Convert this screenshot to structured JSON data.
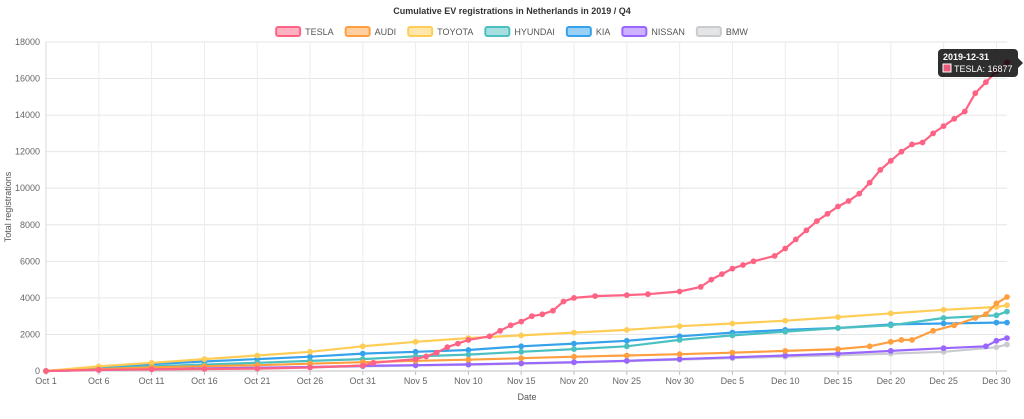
{
  "chart_data": {
    "type": "line",
    "title": "Cumulative EV registrations in Netherlands in 2019 / Q4",
    "xlabel": "Date",
    "ylabel": "Total registrations",
    "ylim": [
      0,
      18000
    ],
    "yticks": [
      0,
      2000,
      4000,
      6000,
      8000,
      10000,
      12000,
      14000,
      16000,
      18000
    ],
    "xticks": [
      "Oct 1",
      "Oct 6",
      "Oct 11",
      "Oct 16",
      "Oct 21",
      "Oct 26",
      "Oct 31",
      "Nov 5",
      "Nov 10",
      "Nov 15",
      "Nov 20",
      "Nov 25",
      "Nov 30",
      "Dec 5",
      "Dec 10",
      "Dec 15",
      "Dec 20",
      "Dec 25",
      "Dec 30"
    ],
    "x_domain": [
      "2019-10-01",
      "2019-12-31"
    ],
    "grid": true,
    "legend_position": "top",
    "tooltip": {
      "date": "2019-12-31",
      "series": "TESLA",
      "value": 16877,
      "label": "TESLA: 16877"
    },
    "series": [
      {
        "name": "TESLA",
        "color": "#ff6384",
        "points": [
          [
            "2019-10-01",
            0
          ],
          [
            "2019-10-06",
            60
          ],
          [
            "2019-10-11",
            90
          ],
          [
            "2019-10-16",
            110
          ],
          [
            "2019-10-21",
            130
          ],
          [
            "2019-10-26",
            190
          ],
          [
            "2019-10-31",
            300
          ],
          [
            "2019-11-01",
            450
          ],
          [
            "2019-11-05",
            650
          ],
          [
            "2019-11-06",
            800
          ],
          [
            "2019-11-07",
            1000
          ],
          [
            "2019-11-08",
            1300
          ],
          [
            "2019-11-09",
            1500
          ],
          [
            "2019-11-10",
            1700
          ],
          [
            "2019-11-12",
            1900
          ],
          [
            "2019-11-13",
            2200
          ],
          [
            "2019-11-14",
            2500
          ],
          [
            "2019-11-15",
            2700
          ],
          [
            "2019-11-16",
            3000
          ],
          [
            "2019-11-17",
            3100
          ],
          [
            "2019-11-18",
            3300
          ],
          [
            "2019-11-19",
            3800
          ],
          [
            "2019-11-20",
            4000
          ],
          [
            "2019-11-22",
            4100
          ],
          [
            "2019-11-25",
            4150
          ],
          [
            "2019-11-27",
            4200
          ],
          [
            "2019-11-30",
            4350
          ],
          [
            "2019-12-02",
            4600
          ],
          [
            "2019-12-03",
            5000
          ],
          [
            "2019-12-04",
            5300
          ],
          [
            "2019-12-05",
            5600
          ],
          [
            "2019-12-06",
            5800
          ],
          [
            "2019-12-07",
            6000
          ],
          [
            "2019-12-09",
            6300
          ],
          [
            "2019-12-10",
            6700
          ],
          [
            "2019-12-11",
            7200
          ],
          [
            "2019-12-12",
            7700
          ],
          [
            "2019-12-13",
            8200
          ],
          [
            "2019-12-14",
            8600
          ],
          [
            "2019-12-15",
            9000
          ],
          [
            "2019-12-16",
            9300
          ],
          [
            "2019-12-17",
            9700
          ],
          [
            "2019-12-18",
            10300
          ],
          [
            "2019-12-19",
            11000
          ],
          [
            "2019-12-20",
            11500
          ],
          [
            "2019-12-21",
            12000
          ],
          [
            "2019-12-22",
            12400
          ],
          [
            "2019-12-23",
            12500
          ],
          [
            "2019-12-24",
            13000
          ],
          [
            "2019-12-25",
            13400
          ],
          [
            "2019-12-26",
            13800
          ],
          [
            "2019-12-27",
            14200
          ],
          [
            "2019-12-28",
            15200
          ],
          [
            "2019-12-29",
            15800
          ],
          [
            "2019-12-30",
            16400
          ],
          [
            "2019-12-31",
            16877
          ]
        ]
      },
      {
        "name": "AUDI",
        "color": "#ff9f40",
        "points": [
          [
            "2019-10-01",
            0
          ],
          [
            "2019-10-06",
            100
          ],
          [
            "2019-10-11",
            200
          ],
          [
            "2019-10-16",
            260
          ],
          [
            "2019-10-21",
            320
          ],
          [
            "2019-10-26",
            400
          ],
          [
            "2019-10-31",
            480
          ],
          [
            "2019-11-05",
            560
          ],
          [
            "2019-11-10",
            620
          ],
          [
            "2019-11-15",
            700
          ],
          [
            "2019-11-20",
            780
          ],
          [
            "2019-11-25",
            850
          ],
          [
            "2019-11-30",
            920
          ],
          [
            "2019-12-05",
            1000
          ],
          [
            "2019-12-10",
            1100
          ],
          [
            "2019-12-15",
            1200
          ],
          [
            "2019-12-18",
            1350
          ],
          [
            "2019-12-20",
            1600
          ],
          [
            "2019-12-21",
            1700
          ],
          [
            "2019-12-22",
            1700
          ],
          [
            "2019-12-24",
            2200
          ],
          [
            "2019-12-26",
            2500
          ],
          [
            "2019-12-28",
            2900
          ],
          [
            "2019-12-29",
            3100
          ],
          [
            "2019-12-30",
            3700
          ],
          [
            "2019-12-31",
            4050
          ]
        ]
      },
      {
        "name": "TOYOTA",
        "color": "#ffcd56",
        "points": [
          [
            "2019-10-01",
            0
          ],
          [
            "2019-10-06",
            250
          ],
          [
            "2019-10-11",
            450
          ],
          [
            "2019-10-16",
            650
          ],
          [
            "2019-10-21",
            850
          ],
          [
            "2019-10-26",
            1050
          ],
          [
            "2019-10-31",
            1350
          ],
          [
            "2019-11-05",
            1600
          ],
          [
            "2019-11-10",
            1800
          ],
          [
            "2019-11-15",
            1950
          ],
          [
            "2019-11-20",
            2100
          ],
          [
            "2019-11-25",
            2250
          ],
          [
            "2019-11-30",
            2450
          ],
          [
            "2019-12-05",
            2600
          ],
          [
            "2019-12-10",
            2750
          ],
          [
            "2019-12-15",
            2950
          ],
          [
            "2019-12-20",
            3150
          ],
          [
            "2019-12-25",
            3350
          ],
          [
            "2019-12-30",
            3500
          ],
          [
            "2019-12-31",
            3600
          ]
        ]
      },
      {
        "name": "HYUNDAI",
        "color": "#4bc0c0",
        "points": [
          [
            "2019-10-01",
            0
          ],
          [
            "2019-10-06",
            120
          ],
          [
            "2019-10-11",
            250
          ],
          [
            "2019-10-16",
            350
          ],
          [
            "2019-10-21",
            450
          ],
          [
            "2019-10-26",
            550
          ],
          [
            "2019-10-31",
            650
          ],
          [
            "2019-11-05",
            800
          ],
          [
            "2019-11-10",
            900
          ],
          [
            "2019-11-15",
            1050
          ],
          [
            "2019-11-20",
            1200
          ],
          [
            "2019-11-25",
            1350
          ],
          [
            "2019-11-30",
            1700
          ],
          [
            "2019-12-05",
            1950
          ],
          [
            "2019-12-10",
            2150
          ],
          [
            "2019-12-15",
            2350
          ],
          [
            "2019-12-20",
            2500
          ],
          [
            "2019-12-25",
            2900
          ],
          [
            "2019-12-30",
            3050
          ],
          [
            "2019-12-31",
            3250
          ]
        ]
      },
      {
        "name": "KIA",
        "color": "#36a2eb",
        "points": [
          [
            "2019-10-01",
            0
          ],
          [
            "2019-10-06",
            200
          ],
          [
            "2019-10-11",
            380
          ],
          [
            "2019-10-16",
            520
          ],
          [
            "2019-10-21",
            650
          ],
          [
            "2019-10-26",
            780
          ],
          [
            "2019-10-31",
            950
          ],
          [
            "2019-11-05",
            1050
          ],
          [
            "2019-11-10",
            1150
          ],
          [
            "2019-11-15",
            1350
          ],
          [
            "2019-11-20",
            1500
          ],
          [
            "2019-11-25",
            1650
          ],
          [
            "2019-11-30",
            1900
          ],
          [
            "2019-12-05",
            2100
          ],
          [
            "2019-12-10",
            2250
          ],
          [
            "2019-12-15",
            2350
          ],
          [
            "2019-12-20",
            2550
          ],
          [
            "2019-12-25",
            2600
          ],
          [
            "2019-12-30",
            2650
          ],
          [
            "2019-12-31",
            2650
          ]
        ]
      },
      {
        "name": "NISSAN",
        "color": "#9966ff",
        "points": [
          [
            "2019-10-01",
            0
          ],
          [
            "2019-10-06",
            60
          ],
          [
            "2019-10-11",
            110
          ],
          [
            "2019-10-16",
            150
          ],
          [
            "2019-10-21",
            180
          ],
          [
            "2019-10-26",
            220
          ],
          [
            "2019-10-31",
            280
          ],
          [
            "2019-11-05",
            320
          ],
          [
            "2019-11-10",
            360
          ],
          [
            "2019-11-15",
            420
          ],
          [
            "2019-11-20",
            480
          ],
          [
            "2019-11-25",
            560
          ],
          [
            "2019-11-30",
            650
          ],
          [
            "2019-12-05",
            750
          ],
          [
            "2019-12-10",
            850
          ],
          [
            "2019-12-15",
            950
          ],
          [
            "2019-12-20",
            1100
          ],
          [
            "2019-12-25",
            1250
          ],
          [
            "2019-12-29",
            1350
          ],
          [
            "2019-12-30",
            1650
          ],
          [
            "2019-12-31",
            1800
          ]
        ]
      },
      {
        "name": "BMW",
        "color": "#c9cbcf",
        "points": [
          [
            "2019-10-01",
            0
          ],
          [
            "2019-10-06",
            50
          ],
          [
            "2019-10-11",
            90
          ],
          [
            "2019-10-16",
            130
          ],
          [
            "2019-10-21",
            160
          ],
          [
            "2019-10-26",
            200
          ],
          [
            "2019-10-31",
            250
          ],
          [
            "2019-11-05",
            300
          ],
          [
            "2019-11-10",
            340
          ],
          [
            "2019-11-15",
            400
          ],
          [
            "2019-11-20",
            460
          ],
          [
            "2019-11-25",
            540
          ],
          [
            "2019-11-30",
            620
          ],
          [
            "2019-12-05",
            700
          ],
          [
            "2019-12-10",
            780
          ],
          [
            "2019-12-15",
            860
          ],
          [
            "2019-12-20",
            950
          ],
          [
            "2019-12-25",
            1050
          ],
          [
            "2019-12-30",
            1300
          ],
          [
            "2019-12-31",
            1450
          ]
        ]
      }
    ]
  }
}
